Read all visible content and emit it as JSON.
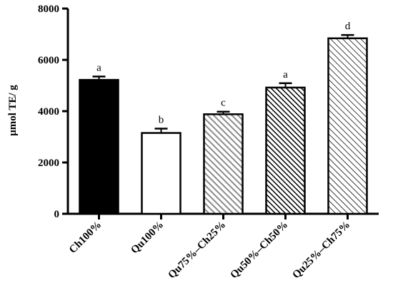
{
  "chart_data": {
    "type": "bar",
    "title": "",
    "xlabel": "",
    "ylabel": "μmol TE/ g",
    "ylim": [
      0,
      8000
    ],
    "yticks": [
      "0",
      "2000",
      "4000",
      "6000",
      "8000"
    ],
    "categories": [
      "Ch100%",
      "Qu100%",
      "Qu75%–Ch25%",
      "Qu50%–Ch50%",
      "Qu25%–Ch75%"
    ],
    "values": [
      5220,
      3150,
      3880,
      4920,
      6840
    ],
    "errors": [
      130,
      170,
      100,
      170,
      130
    ],
    "significance": [
      "a",
      "b",
      "c",
      "a",
      "d"
    ],
    "fills": [
      "solid-black",
      "white",
      "grey-hatch",
      "black-hatch",
      "white-hatch"
    ],
    "grid": false,
    "legend": "none"
  }
}
